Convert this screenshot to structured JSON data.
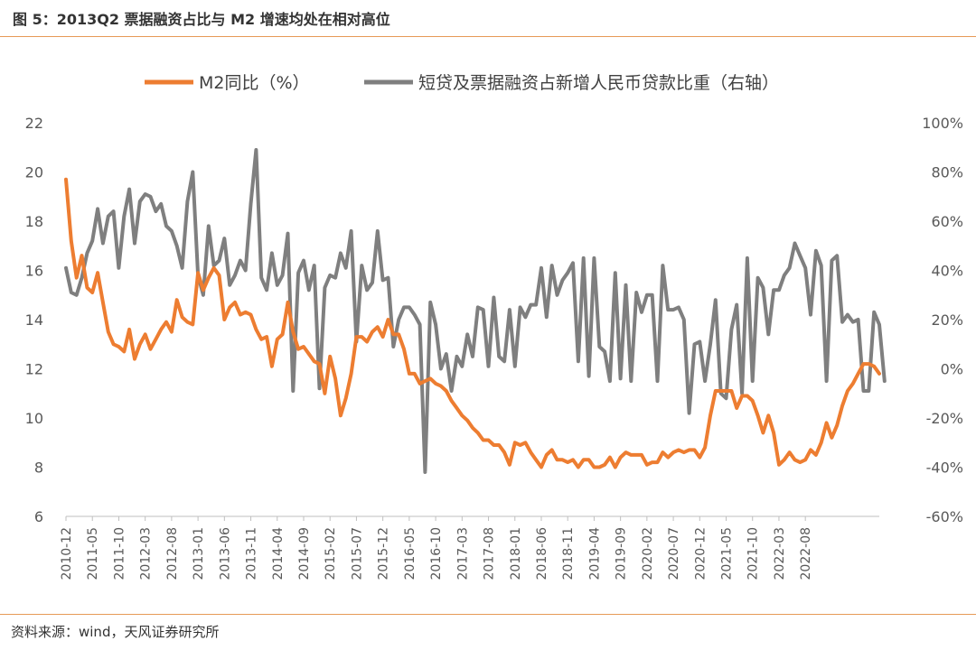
{
  "figure": {
    "title": "图 5：2013Q2 票据融资占比与 M2 增速均处在相对高位",
    "source": "资料来源：wind，天风证券研究所"
  },
  "chart_data": {
    "type": "line",
    "start_month": "2010-12",
    "x_tick_labels": [
      "2010-12",
      "2011-05",
      "2011-10",
      "2012-03",
      "2012-08",
      "2013-01",
      "2013-06",
      "2013-11",
      "2014-04",
      "2014-09",
      "2015-02",
      "2015-07",
      "2015-12",
      "2016-05",
      "2016-10",
      "2017-03",
      "2017-08",
      "2018-01",
      "2018-06",
      "2018-11",
      "2019-04",
      "2019-09",
      "2020-02",
      "2020-07",
      "2020-12",
      "2021-05",
      "2021-10",
      "2022-03",
      "2022-08"
    ],
    "y_left": {
      "min": 6,
      "max": 22,
      "ticks": [
        6,
        8,
        10,
        12,
        14,
        16,
        18,
        20,
        22
      ]
    },
    "y_right": {
      "min": -60,
      "max": 100,
      "ticks": [
        "-60%",
        "-40%",
        "-20%",
        "0%",
        "20%",
        "40%",
        "60%",
        "80%",
        "100%"
      ]
    },
    "legend_position": "top-center",
    "series": [
      {
        "name": "M2同比（%）",
        "axis": "left",
        "color": "#ed7d31",
        "values": [
          19.7,
          17.2,
          15.7,
          16.6,
          15.3,
          15.1,
          15.9,
          14.7,
          13.5,
          13.0,
          12.9,
          12.7,
          13.6,
          12.4,
          13.0,
          13.4,
          12.8,
          13.2,
          13.6,
          13.9,
          13.5,
          14.8,
          14.1,
          13.9,
          13.8,
          15.9,
          15.2,
          15.7,
          16.1,
          15.8,
          14.0,
          14.5,
          14.7,
          14.2,
          14.3,
          14.2,
          13.6,
          13.2,
          13.3,
          12.1,
          13.2,
          13.4,
          14.7,
          13.5,
          12.8,
          12.9,
          12.6,
          12.3,
          12.2,
          11.0,
          12.5,
          11.6,
          10.1,
          10.8,
          11.8,
          13.3,
          13.3,
          13.1,
          13.5,
          13.7,
          13.3,
          14.0,
          13.4,
          13.4,
          12.8,
          11.8,
          11.8,
          11.4,
          11.5,
          11.6,
          11.4,
          11.3,
          11.1,
          10.7,
          10.4,
          10.1,
          9.9,
          9.6,
          9.4,
          9.1,
          9.1,
          8.9,
          8.9,
          8.6,
          8.1,
          9.0,
          8.9,
          9.0,
          8.6,
          8.3,
          8.0,
          8.5,
          8.7,
          8.3,
          8.3,
          8.2,
          8.3,
          8.0,
          8.3,
          8.3,
          8.0,
          8.0,
          8.1,
          8.4,
          8.0,
          8.4,
          8.6,
          8.5,
          8.5,
          8.5,
          8.1,
          8.2,
          8.2,
          8.6,
          8.4,
          8.6,
          8.7,
          8.6,
          8.7,
          8.7,
          8.4,
          8.8,
          10.1,
          11.1,
          11.1,
          11.1,
          11.1,
          10.4,
          10.9,
          10.9,
          10.7,
          10.1,
          9.4,
          10.1,
          9.4,
          8.1,
          8.3,
          8.6,
          8.3,
          8.2,
          8.3,
          8.7,
          8.5,
          9.0,
          9.8,
          9.2,
          9.7,
          10.5,
          11.1,
          11.4,
          11.8,
          12.2,
          12.2,
          12.1,
          11.8
        ]
      },
      {
        "name": "短贷及票据融资占新增人民币贷款比重（右轴）",
        "axis": "right",
        "color": "#7f7f7f",
        "values": [
          41,
          31,
          30,
          37,
          47,
          52,
          65,
          51,
          62,
          64,
          41,
          62,
          73,
          51,
          68,
          71,
          70,
          64,
          67,
          58,
          56,
          50,
          41,
          68,
          80,
          38,
          30,
          58,
          42,
          44,
          53,
          34,
          38,
          44,
          40,
          67,
          89,
          37,
          32,
          47,
          34,
          38,
          55,
          -9,
          39,
          44,
          32,
          42,
          -8,
          33,
          38,
          37,
          47,
          41,
          56,
          11,
          42,
          32,
          35,
          56,
          36,
          37,
          9,
          20,
          25,
          25,
          22,
          18,
          -42,
          27,
          18,
          0,
          6,
          -9,
          5,
          1,
          14,
          5,
          25,
          24,
          1,
          29,
          5,
          3,
          24,
          1,
          25,
          21,
          26,
          26,
          41,
          21,
          42,
          30,
          36,
          39,
          43,
          3,
          45,
          -3,
          45,
          9,
          7,
          -5,
          39,
          -4,
          34,
          -5,
          31,
          23,
          30,
          30,
          -5,
          42,
          24,
          24,
          25,
          20,
          -18,
          10,
          11,
          -5,
          10,
          28,
          -10,
          -12,
          16,
          26,
          -10,
          45,
          -5,
          37,
          33,
          14,
          32,
          32,
          38,
          41,
          51,
          46,
          41,
          22,
          48,
          42,
          -5,
          44,
          46,
          19,
          22,
          19,
          20,
          -9,
          -9,
          23,
          18,
          -5
        ]
      }
    ]
  }
}
